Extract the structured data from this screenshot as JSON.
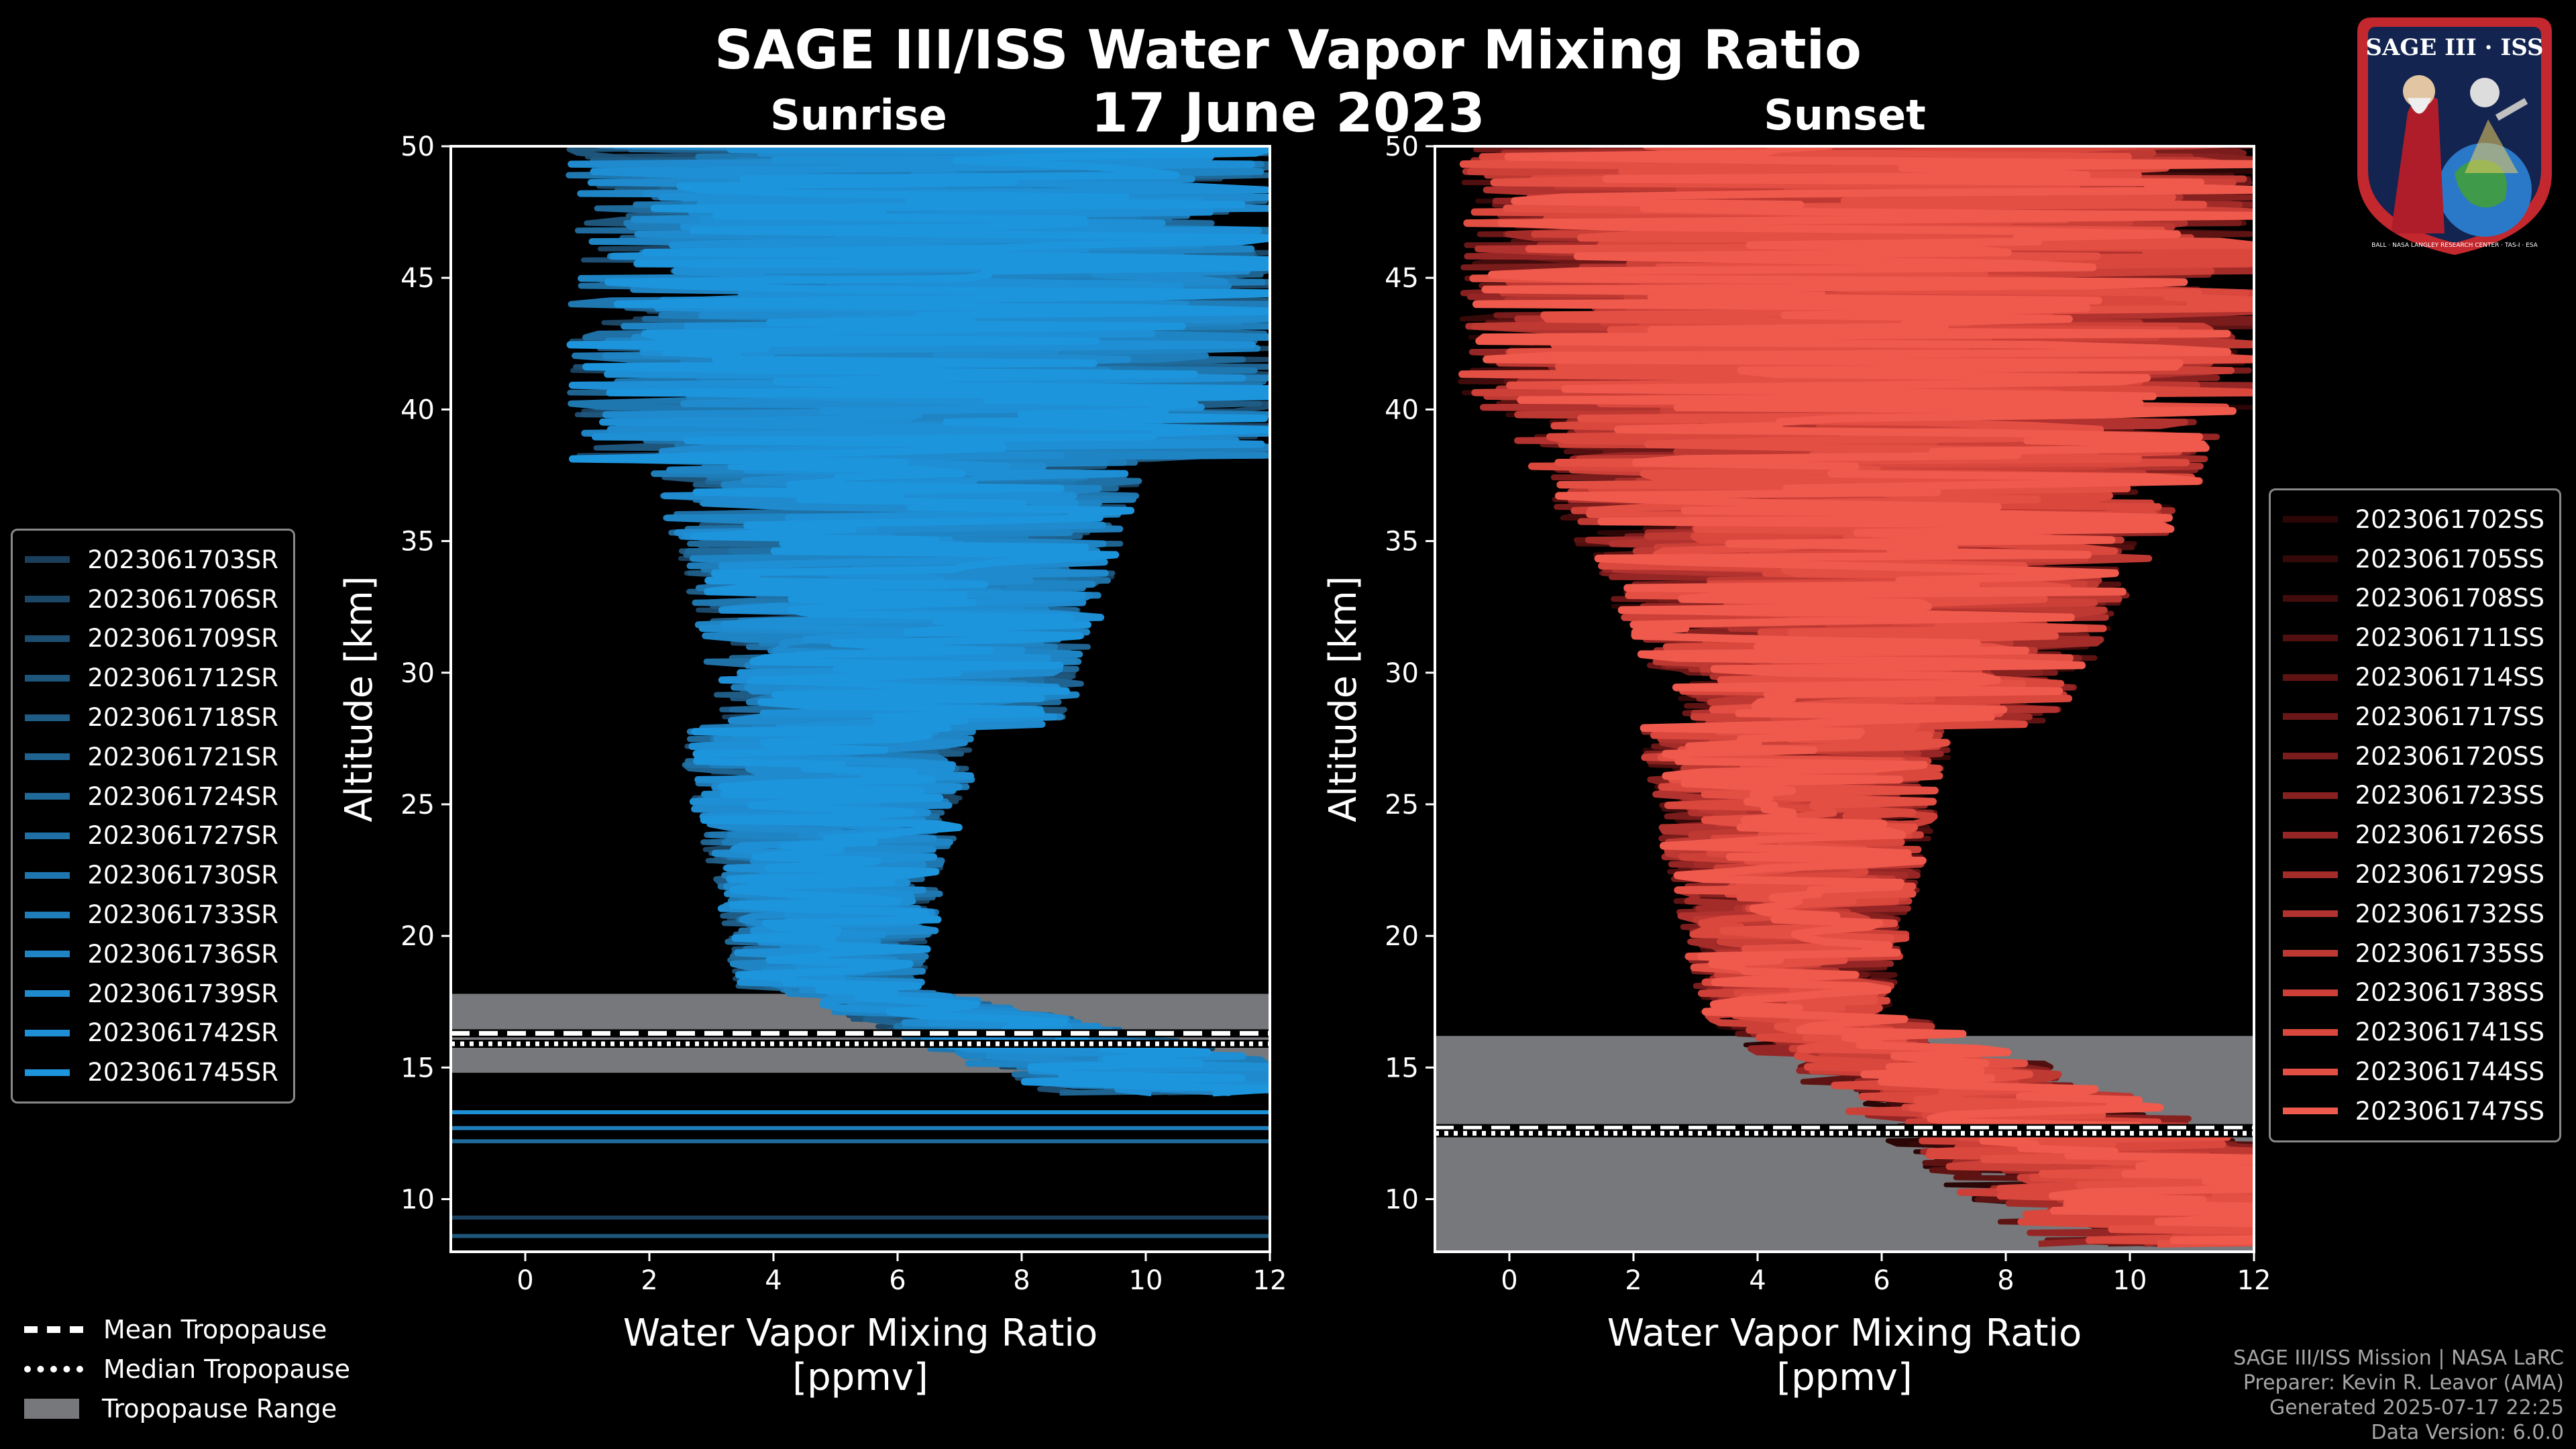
{
  "title": "SAGE III/ISS Water Vapor Mixing Ratio",
  "date": "17 June 2023",
  "logo": {
    "text_top": "SAGE III · ISS",
    "text_ring": "BALL · NASA LANGLEY RESEARCH CENTER · TAS-I · ESA"
  },
  "legend_bottom": {
    "mean": "Mean Tropopause",
    "median": "Median Tropopause",
    "range": "Tropopause Range"
  },
  "footer": {
    "line1": "SAGE III/ISS Mission | NASA LaRC",
    "line2": "Preparer: Kevin R. Leavor (AMA)",
    "line3": "Generated 2025-07-17 22:25",
    "line4": "Data Version: 6.0.0"
  },
  "colors": {
    "sunrise": "#1f8fd6",
    "sunset": "#e8594b",
    "band": "#77787b"
  },
  "chart_data": [
    {
      "type": "line",
      "subtitle": "Sunrise",
      "xlabel": "Water Vapor Mixing Ratio\n[ppmv]",
      "ylabel": "Altitude [km]",
      "xlim": [
        -1.2,
        12
      ],
      "ylim": [
        8,
        50
      ],
      "xticks": [
        0,
        2,
        4,
        6,
        8,
        10,
        12
      ],
      "yticks": [
        10,
        15,
        20,
        25,
        30,
        35,
        40,
        45,
        50
      ],
      "tropopause": {
        "mean": 16.3,
        "median": 15.9,
        "range": [
          14.8,
          17.8
        ]
      },
      "series": [
        {
          "name": "2023061703SR",
          "color": "#1a3f5c"
        },
        {
          "name": "2023061706SR",
          "color": "#1c4665"
        },
        {
          "name": "2023061709SR",
          "color": "#1d4d70"
        },
        {
          "name": "2023061712SR",
          "color": "#1e557b"
        },
        {
          "name": "2023061718SR",
          "color": "#1f5c85"
        },
        {
          "name": "2023061721SR",
          "color": "#1f6390"
        },
        {
          "name": "2023061724SR",
          "color": "#1f6a9a"
        },
        {
          "name": "2023061727SR",
          "color": "#1f70a5"
        },
        {
          "name": "2023061730SR",
          "color": "#1f77b0"
        },
        {
          "name": "2023061733SR",
          "color": "#1f7eba"
        },
        {
          "name": "2023061736SR",
          "color": "#1f84c4"
        },
        {
          "name": "2023061739SR",
          "color": "#1f8acd"
        },
        {
          "name": "2023061742SR",
          "color": "#1e8fd5"
        },
        {
          "name": "2023061745SR",
          "color": "#1d95dd"
        }
      ]
    },
    {
      "type": "line",
      "subtitle": "Sunset",
      "xlabel": "Water Vapor Mixing Ratio\n[ppmv]",
      "ylabel": "Altitude [km]",
      "xlim": [
        -1.2,
        12
      ],
      "ylim": [
        8,
        50
      ],
      "xticks": [
        0,
        2,
        4,
        6,
        8,
        10,
        12
      ],
      "yticks": [
        10,
        15,
        20,
        25,
        30,
        35,
        40,
        45,
        50
      ],
      "tropopause": {
        "mean": 12.7,
        "median": 12.5,
        "range": [
          8,
          16.2
        ]
      },
      "series": [
        {
          "name": "2023061702SS",
          "color": "#2a0606"
        },
        {
          "name": "2023061705SS",
          "color": "#360909"
        },
        {
          "name": "2023061708SS",
          "color": "#430c0c"
        },
        {
          "name": "2023061711SS",
          "color": "#510f0f"
        },
        {
          "name": "2023061714SS",
          "color": "#5e1313"
        },
        {
          "name": "2023061717SS",
          "color": "#6c1717"
        },
        {
          "name": "2023061720SS",
          "color": "#7a1c1c"
        },
        {
          "name": "2023061723SS",
          "color": "#872120"
        },
        {
          "name": "2023061726SS",
          "color": "#952625"
        },
        {
          "name": "2023061729SS",
          "color": "#a32c29"
        },
        {
          "name": "2023061732SS",
          "color": "#b1322e"
        },
        {
          "name": "2023061735SS",
          "color": "#bf3933"
        },
        {
          "name": "2023061738SS",
          "color": "#cc4038"
        },
        {
          "name": "2023061741SS",
          "color": "#d9473d"
        },
        {
          "name": "2023061744SS",
          "color": "#e44f44"
        },
        {
          "name": "2023061747SS",
          "color": "#ef5a4d"
        }
      ]
    }
  ]
}
